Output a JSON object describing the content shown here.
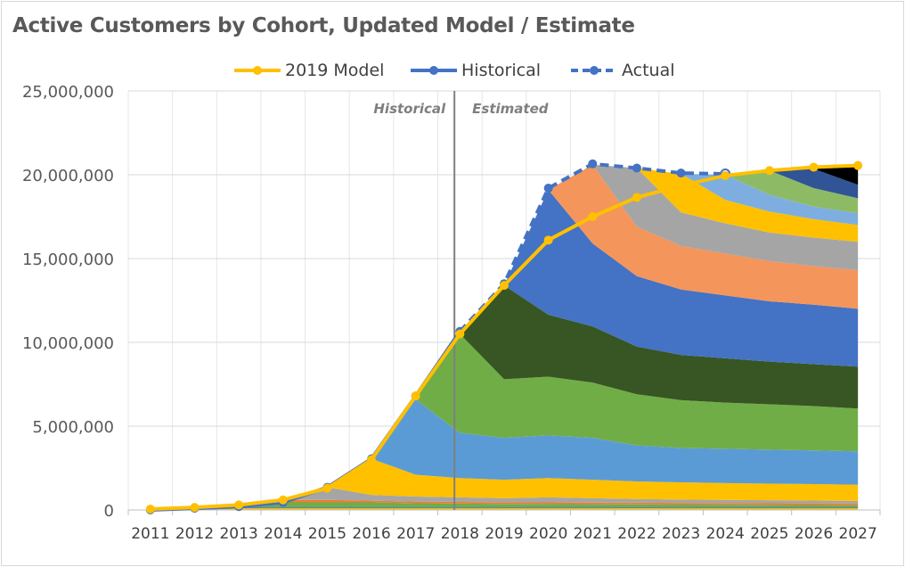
{
  "chart_data": {
    "type": "area",
    "title": "Active Customers by Cohort, Updated Model / Estimate",
    "xlabel": "",
    "ylabel": "",
    "categories": [
      "2011",
      "2012",
      "2013",
      "2014",
      "2015",
      "2016",
      "2017",
      "2018",
      "2019",
      "2020",
      "2021",
      "2022",
      "2023",
      "2024",
      "2025",
      "2026",
      "2027"
    ],
    "ylim": [
      0,
      25000000
    ],
    "yticks": [
      0,
      5000000,
      10000000,
      15000000,
      20000000,
      25000000
    ],
    "ytick_labels": [
      "0",
      "5,000,000",
      "10,000,000",
      "15,000,000",
      "20,000,000",
      "25,000,000"
    ],
    "grid": true,
    "legend_position": "top",
    "legend": [
      {
        "name": "2019 Model",
        "color": "#FFC000",
        "style": "solid"
      },
      {
        "name": "Historical",
        "color": "#4472C4",
        "style": "solid"
      },
      {
        "name": "Actual",
        "color": "#4472C4",
        "style": "dashed"
      }
    ],
    "annotations": [
      {
        "text": "Historical"
      },
      {
        "text": "Estimated"
      }
    ],
    "cohort_areas": {
      "colors": [
        "#A5A5A5",
        "#FFC000",
        "#4472C4",
        "#70AD47",
        "#ED7D31",
        "#A5A5A5",
        "#FFC000",
        "#5B9BD5",
        "#70AD47",
        "#375623",
        "#4472C4",
        "#F4955B",
        "#A5A5A5",
        "#FFC000",
        "#7EAEE0",
        "#8DBB65",
        "#305496"
      ],
      "cumulative_top": [
        [
          0,
          0,
          0,
          0,
          0,
          0,
          0,
          0,
          0,
          0,
          0,
          0,
          0,
          0,
          0,
          0,
          0
        ],
        [
          0,
          0,
          100000,
          100000,
          100000,
          100000,
          100000,
          100000,
          100000,
          100000,
          100000,
          100000,
          100000,
          100000,
          100000,
          100000,
          100000
        ],
        [
          null,
          50000,
          150000,
          150000,
          150000,
          150000,
          150000,
          150000,
          150000,
          150000,
          150000,
          150000,
          150000,
          150000,
          150000,
          150000,
          150000
        ],
        [
          null,
          null,
          200000,
          450000,
          450000,
          450000,
          400000,
          380000,
          360000,
          350000,
          340000,
          330000,
          320000,
          310000,
          300000,
          290000,
          280000
        ],
        [
          null,
          null,
          null,
          600000,
          600000,
          550000,
          500000,
          480000,
          460000,
          450000,
          440000,
          430000,
          420000,
          410000,
          400000,
          390000,
          380000
        ],
        [
          null,
          null,
          null,
          null,
          1350000,
          900000,
          800000,
          750000,
          700000,
          750000,
          700000,
          650000,
          620000,
          600000,
          580000,
          560000,
          540000
        ],
        [
          null,
          null,
          null,
          null,
          null,
          3050000,
          2100000,
          1900000,
          1800000,
          1900000,
          1800000,
          1700000,
          1650000,
          1600000,
          1570000,
          1540000,
          1500000
        ],
        [
          null,
          null,
          null,
          null,
          null,
          null,
          6600000,
          4600000,
          4300000,
          4450000,
          4300000,
          3850000,
          3700000,
          3650000,
          3600000,
          3550000,
          3500000
        ],
        [
          null,
          null,
          null,
          null,
          null,
          null,
          null,
          10500000,
          7800000,
          7950000,
          7600000,
          6900000,
          6550000,
          6400000,
          6300000,
          6200000,
          6050000
        ],
        [
          null,
          null,
          null,
          null,
          null,
          null,
          null,
          null,
          13400000,
          11650000,
          10950000,
          9750000,
          9250000,
          9050000,
          8850000,
          8700000,
          8550000
        ],
        [
          null,
          null,
          null,
          null,
          null,
          null,
          null,
          null,
          null,
          19100000,
          15900000,
          13950000,
          13150000,
          12800000,
          12450000,
          12250000,
          12000000
        ],
        [
          null,
          null,
          null,
          null,
          null,
          null,
          null,
          null,
          null,
          null,
          20600000,
          16900000,
          15750000,
          15300000,
          14850000,
          14550000,
          14300000
        ],
        [
          null,
          null,
          null,
          null,
          null,
          null,
          null,
          null,
          null,
          null,
          null,
          20400000,
          17750000,
          17100000,
          16550000,
          16250000,
          16000000
        ],
        [
          null,
          null,
          null,
          null,
          null,
          null,
          null,
          null,
          null,
          null,
          null,
          null,
          20050000,
          18500000,
          17800000,
          17350000,
          17000000
        ],
        [
          null,
          null,
          null,
          null,
          null,
          null,
          null,
          null,
          null,
          null,
          null,
          null,
          null,
          20000000,
          18800000,
          18100000,
          17700000
        ],
        [
          null,
          null,
          null,
          null,
          null,
          null,
          null,
          null,
          null,
          null,
          null,
          null,
          null,
          null,
          20250000,
          19200000,
          18600000
        ],
        [
          null,
          null,
          null,
          null,
          null,
          null,
          null,
          null,
          null,
          null,
          null,
          null,
          null,
          null,
          null,
          20350000,
          19400000
        ],
        [
          null,
          null,
          null,
          null,
          null,
          null,
          null,
          null,
          null,
          null,
          null,
          null,
          null,
          null,
          null,
          null,
          20550000
        ]
      ]
    },
    "series": [
      {
        "name": "2019 Model",
        "color": "#FFC000",
        "style": "solid",
        "values": [
          50000,
          150000,
          300000,
          600000,
          1300000,
          3000000,
          6800000,
          10500000,
          13400000,
          16100000,
          17500000,
          18650000,
          19350000,
          19950000,
          20250000,
          20450000,
          20550000
        ]
      },
      {
        "name": "Historical",
        "color": "#4472C4",
        "style": "solid",
        "values": [
          0,
          100000,
          200000,
          450000,
          1350000,
          3050000,
          6800000,
          10650000,
          null,
          null,
          null,
          null,
          null,
          null,
          null,
          null,
          null
        ]
      },
      {
        "name": "Actual",
        "color": "#4472C4",
        "style": "dashed",
        "values": [
          null,
          null,
          null,
          null,
          null,
          null,
          null,
          10650000,
          13500000,
          19200000,
          20650000,
          20400000,
          20100000,
          20050000,
          null,
          null,
          null
        ]
      }
    ]
  }
}
